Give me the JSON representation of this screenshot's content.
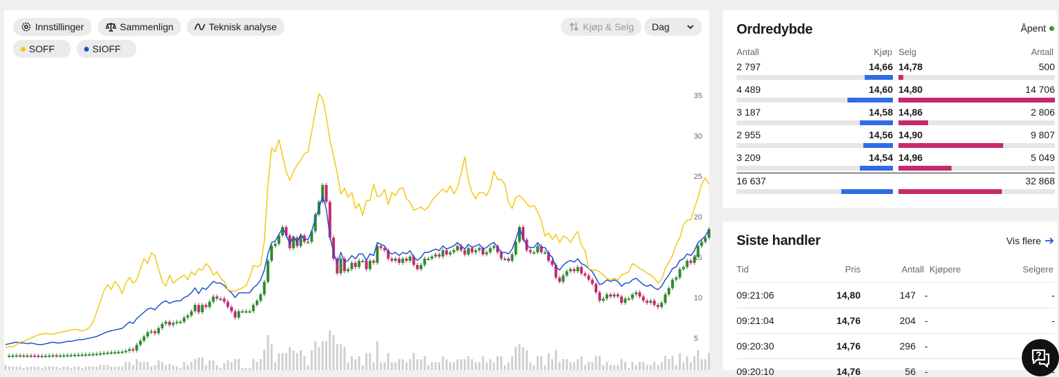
{
  "toolbar": {
    "settings_label": "Innstillinger",
    "compare_label": "Sammenlign",
    "technical_label": "Teknisk analyse",
    "trade_label": "Kjøp & Selg",
    "period_value": "Dag"
  },
  "legend": {
    "items": [
      {
        "label": "SOFF",
        "color": "#f2c811"
      },
      {
        "label": "SIOFF",
        "color": "#1f4fd1"
      }
    ]
  },
  "chart_data": {
    "type": "line",
    "y_ticks": [
      "35",
      "30",
      "25",
      "20",
      "15",
      "10",
      "5"
    ],
    "ylim": [
      3,
      37
    ],
    "series": [
      {
        "name": "SOFF",
        "color": "#f2c811",
        "values": [
          3.8,
          4.0,
          3.9,
          4.2,
          4.5,
          4.6,
          4.8,
          5.0,
          5.2,
          5.4,
          5.5,
          5.6,
          5.5,
          5.5,
          5.6,
          5.7,
          5.8,
          5.9,
          6.0,
          6.1,
          6.0,
          5.9,
          6.0,
          6.3,
          7.0,
          8.2,
          9.5,
          10.8,
          11.6,
          11.0,
          12.0,
          11.5,
          10.5,
          11.8,
          12.5,
          11.8,
          12.2,
          13.6,
          14.8,
          14.2,
          15.5,
          15.2,
          13.5,
          12.0,
          11.4,
          12.8,
          11.8,
          12.2,
          12.5,
          12.8,
          12.2,
          13.2,
          12.8,
          13.6,
          13.4,
          14.2,
          13.8,
          12.8,
          13.2,
          12.4,
          12.0,
          11.0,
          10.8,
          10.8,
          11.0,
          11.2,
          11.5,
          12.5,
          14.0,
          13.8,
          14.0,
          17.0,
          24.0,
          28.5,
          28.0,
          29.5,
          27.6,
          25.6,
          24.5,
          25.6,
          26.4,
          27.0,
          27.8,
          28.0,
          30.5,
          33.0,
          35.2,
          34.6,
          32.4,
          29.5,
          27.5,
          25.4,
          22.8,
          23.5,
          22.4,
          23.0,
          21.0,
          21.6,
          20.2,
          22.0,
          22.0,
          24.0,
          22.5,
          22.6,
          23.4,
          21.5,
          23.0,
          22.6,
          23.4,
          23.6,
          22.2,
          21.8,
          20.8,
          21.0,
          21.2,
          20.8,
          21.2,
          22.0,
          22.5,
          23.0,
          23.4,
          23.0,
          23.8,
          22.8,
          23.6,
          25.4,
          27.4,
          24.5,
          23.0,
          22.2,
          23.0,
          23.0,
          22.6,
          23.6,
          25.6,
          24.6,
          24.6,
          24.0,
          21.8,
          21.0,
          22.4,
          22.6,
          22.2,
          21.6,
          21.2,
          21.4,
          20.6,
          19.5,
          17.6,
          18.0,
          17.2,
          17.8,
          16.8,
          17.6,
          17.4,
          16.8,
          17.6,
          18.2,
          16.5,
          15.8,
          13.6,
          13.4,
          13.4,
          13.2,
          12.8,
          12.4,
          12.2,
          12.4,
          12.2,
          12.8,
          13.0,
          13.2,
          14.2,
          14.0,
          13.6,
          13.4,
          13.0,
          12.8,
          12.4,
          11.8,
          12.2,
          13.6,
          14.4,
          15.2,
          16.6,
          17.4,
          19.0,
          19.6,
          19.6,
          21.0,
          22.4,
          24.0,
          24.8,
          24.0
        ]
      },
      {
        "name": "SIOFF",
        "color": "#1f4fd1",
        "values": [
          4.2,
          4.3,
          4.4,
          4.5,
          4.4,
          4.4,
          4.3,
          4.4,
          4.3,
          4.2,
          4.2,
          4.3,
          4.4,
          4.5,
          4.4,
          4.4,
          4.5,
          4.6,
          4.6,
          4.7,
          4.8,
          4.8,
          4.9,
          5.0,
          5.1,
          5.2,
          5.4,
          5.6,
          5.8,
          5.9,
          6.0,
          6.1,
          6.2,
          6.6,
          7.0,
          6.8,
          7.4,
          7.8,
          8.2,
          8.6,
          8.7,
          8.5,
          9.0,
          9.4,
          9.6,
          9.3,
          9.5,
          9.6,
          9.6,
          10.0,
          10.2,
          10.6,
          11.2,
          10.5,
          11.2,
          11.0,
          11.5,
          12.0,
          11.8,
          11.8,
          11.5,
          11.0,
          10.6,
          10.0,
          10.6,
          10.6,
          10.6,
          10.6,
          11.2,
          11.6,
          12.2,
          13.4,
          15.4,
          16.8,
          17.0,
          17.8,
          18.6,
          17.8,
          16.6,
          17.6,
          16.8,
          17.8,
          17.2,
          17.2,
          18.2,
          19.8,
          21.0,
          22.6,
          21.0,
          17.6,
          15.6,
          14.2,
          15.6,
          14.4,
          14.6,
          15.2,
          14.8,
          15.4,
          15.4,
          14.6,
          15.4,
          15.2,
          16.8,
          16.6,
          16.4,
          15.6,
          15.4,
          15.6,
          15.2,
          15.6,
          15.4,
          15.8,
          15.0,
          14.6,
          15.0,
          15.6,
          15.6,
          15.8,
          16.0,
          15.8,
          16.4,
          16.0,
          16.2,
          16.4,
          16.8,
          16.4,
          16.0,
          16.6,
          16.2,
          16.4,
          16.6,
          16.0,
          16.2,
          16.6,
          16.8,
          16.2,
          15.6,
          15.6,
          15.4,
          16.0,
          17.2,
          18.6,
          17.4,
          16.4,
          16.2,
          16.2,
          16.8,
          16.2,
          16.2,
          15.4,
          15.0,
          13.8,
          13.4,
          14.0,
          14.4,
          14.6,
          14.4,
          14.8,
          14.2,
          14.0,
          13.6,
          13.2,
          12.4,
          11.6,
          11.8,
          12.2,
          12.0,
          12.2,
          12.0,
          11.4,
          11.8,
          11.8,
          12.2,
          12.4,
          12.0,
          11.6,
          11.4,
          11.6,
          11.2,
          11.0,
          11.4,
          12.2,
          12.8,
          13.6,
          13.8,
          14.6,
          14.8,
          15.4,
          15.2,
          15.8,
          16.8,
          17.2,
          17.6,
          18.4
        ]
      }
    ]
  },
  "orderbook": {
    "title": "Ordredybde",
    "status": "Åpent",
    "headers": {
      "antall_left": "Antall",
      "kjop": "Kjøp",
      "selg": "Selg",
      "antall_right": "Antall"
    },
    "rows": [
      {
        "buy_qty": "2 797",
        "buy_price": "14,66",
        "sell_price": "14,78",
        "sell_qty": "500",
        "buy_share": 0.18,
        "sell_share": 0.03
      },
      {
        "buy_qty": "4 489",
        "buy_price": "14,60",
        "sell_price": "14,80",
        "sell_qty": "14 706",
        "buy_share": 0.29,
        "sell_share": 1.0
      },
      {
        "buy_qty": "3 187",
        "buy_price": "14,58",
        "sell_price": "14,86",
        "sell_qty": "2 806",
        "buy_share": 0.21,
        "sell_share": 0.19
      },
      {
        "buy_qty": "2 955",
        "buy_price": "14,56",
        "sell_price": "14,90",
        "sell_qty": "9 807",
        "buy_share": 0.19,
        "sell_share": 0.67
      },
      {
        "buy_qty": "3 209",
        "buy_price": "14,54",
        "sell_price": "14,96",
        "sell_qty": "5 049",
        "buy_share": 0.21,
        "sell_share": 0.34
      }
    ],
    "total": {
      "buy_qty": "16 637",
      "sell_qty": "32 868",
      "buy_share": 0.33,
      "sell_share": 0.66
    },
    "buy_color": "#2f6de6",
    "sell_color": "#c8296b"
  },
  "trades": {
    "title": "Siste handler",
    "more_label": "Vis flere",
    "headers": {
      "tid": "Tid",
      "pris": "Pris",
      "antall": "Antall",
      "kjopere": "Kjøpere",
      "selgere": "Selgere"
    },
    "rows": [
      {
        "tid": "09:21:06",
        "pris": "14,80",
        "antall": "147",
        "kjopere": "-",
        "selgere": "-"
      },
      {
        "tid": "09:21:04",
        "pris": "14,76",
        "antall": "204",
        "kjopere": "-",
        "selgere": "-"
      },
      {
        "tid": "09:20:30",
        "pris": "14,76",
        "antall": "296",
        "kjopere": "-",
        "selgere": "-"
      },
      {
        "tid": "09:20:10",
        "pris": "14,76",
        "antall": "56",
        "kjopere": "-",
        "selgere": "-"
      }
    ]
  }
}
